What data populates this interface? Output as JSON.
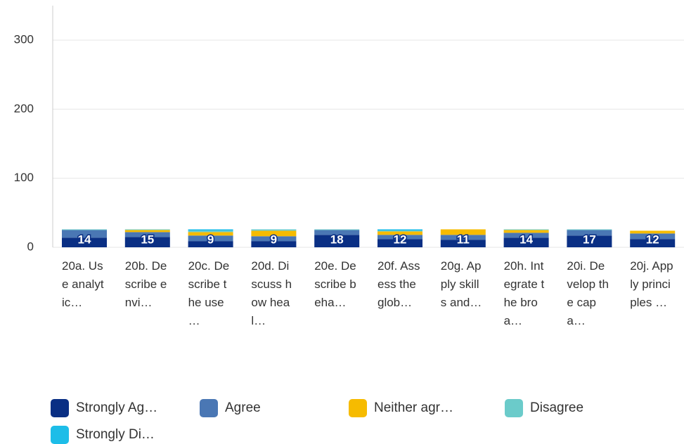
{
  "chart_data": {
    "type": "stacked_bar",
    "categories": [
      "20a. Use analytic…",
      "20b. Describe envi…",
      "20c. Describe the use …",
      "20d. Discuss how heal…",
      "20e. Describe beha…",
      "20f. Assess the glob…",
      "20g. Apply skills and…",
      "20h. Integrate the broa…",
      "20i. Develop the capa…",
      "20j. Apply principles …"
    ],
    "series": [
      {
        "name": "Strongly Ag…",
        "color": "#0a2f84",
        "values": [
          14,
          15,
          9,
          9,
          18,
          12,
          11,
          14,
          17,
          12
        ]
      },
      {
        "name": "Agree",
        "color": "#4a77b4",
        "values": [
          11,
          7,
          8,
          7,
          7,
          6,
          7,
          7,
          8,
          8
        ]
      },
      {
        "name": "Neither agr…",
        "color": "#f6bb00",
        "values": [
          0,
          3,
          5,
          8,
          0,
          5,
          8,
          4,
          0,
          4
        ]
      },
      {
        "name": "Disagree",
        "color": "#6bcbca",
        "values": [
          1,
          1,
          2,
          2,
          1,
          1,
          0,
          1,
          1,
          0
        ]
      },
      {
        "name": "Strongly Di…",
        "color": "#1dbde8",
        "values": [
          0,
          0,
          2,
          0,
          0,
          2,
          0,
          0,
          0,
          0
        ]
      }
    ],
    "ylim": [
      0,
      350
    ],
    "yticks": [
      0,
      100,
      200,
      300
    ],
    "grid": true
  }
}
